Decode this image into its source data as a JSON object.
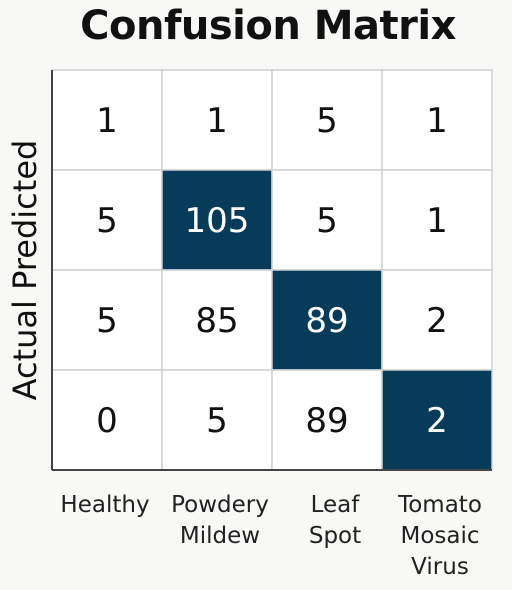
{
  "chart_data": {
    "type": "heatmap",
    "title": "Confusion Matrix",
    "ylabel": "Actual Predicted",
    "xlabel": "",
    "categories": [
      "Healthy",
      "Powdery\nMildew",
      "Leaf\nSpot",
      "Tomato\nMosaic\nVirus"
    ],
    "matrix": [
      [
        1,
        1,
        5,
        1
      ],
      [
        5,
        105,
        5,
        1
      ],
      [
        5,
        85,
        89,
        2
      ],
      [
        0,
        5,
        89,
        2
      ]
    ],
    "highlighted_cells": [
      [
        1,
        1
      ],
      [
        2,
        2
      ],
      [
        3,
        3
      ]
    ],
    "grid": true
  },
  "colors": {
    "highlight": "#073b5a",
    "cell": "#ffffff",
    "grid": "#d0d0d0",
    "text_dark": "#111111",
    "text_light": "#ffffff"
  }
}
